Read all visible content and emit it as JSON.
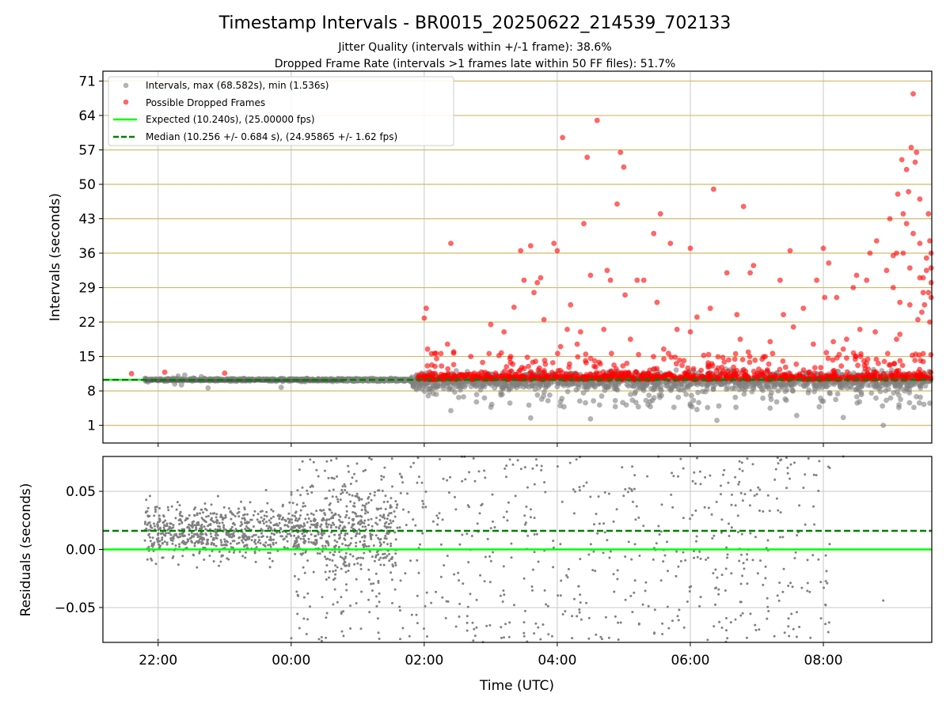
{
  "chart_data": [
    {
      "type": "scatter",
      "title": "Timestamp Intervals - BR0015_20250622_214539_702133",
      "subtitle_lines": [
        "Jitter Quality (intervals within +/-1 frame): 38.6%",
        "Dropped Frame Rate (intervals >1 frames late within 50 FF files): 51.7%"
      ],
      "ylabel": "Intervals (seconds)",
      "ylim": [
        -2.6,
        73.0
      ],
      "yticks": [
        1,
        8,
        15,
        22,
        29,
        36,
        43,
        50,
        57,
        64,
        71
      ],
      "ytick_labels": [
        "1",
        "8",
        "15",
        "22",
        "29",
        "36",
        "43",
        "50",
        "57",
        "64",
        "71"
      ],
      "xlim_hours": [
        -2.83,
        9.63
      ],
      "grid": true,
      "legend_position": "top-left",
      "legend": [
        {
          "label": "Intervals, max (68.582s), min (1.536s)",
          "kind": "marker",
          "color": "#808080"
        },
        {
          "label": "Possible Dropped Frames",
          "kind": "marker",
          "color": "#ff0000"
        },
        {
          "label": "Expected (10.240s), (25.00000 fps)",
          "kind": "line",
          "color": "#00ff00"
        },
        {
          "label": "Median (10.256 +/- 0.684 s), (24.95865 +/- 1.62 fps)",
          "kind": "dashed",
          "color": "#008000"
        }
      ],
      "expected_value": 10.24,
      "median_value": 10.256,
      "dropped_points": [
        [
          2.03,
          24.8
        ],
        [
          2.0,
          22.8
        ],
        [
          2.05,
          16.5
        ],
        [
          2.35,
          17.5
        ],
        [
          2.4,
          38.0
        ],
        [
          2.7,
          15.0
        ],
        [
          3.0,
          21.5
        ],
        [
          3.2,
          20.0
        ],
        [
          3.3,
          15.0
        ],
        [
          3.35,
          25.0
        ],
        [
          3.45,
          36.5
        ],
        [
          3.5,
          30.5
        ],
        [
          3.6,
          37.5
        ],
        [
          3.65,
          28.0
        ],
        [
          3.7,
          30.0
        ],
        [
          3.75,
          31.0
        ],
        [
          3.8,
          22.5
        ],
        [
          3.95,
          38.0
        ],
        [
          4.0,
          36.5
        ],
        [
          4.05,
          17.0
        ],
        [
          4.08,
          59.5
        ],
        [
          4.15,
          20.5
        ],
        [
          4.2,
          25.5
        ],
        [
          4.3,
          17.5
        ],
        [
          4.35,
          20.0
        ],
        [
          4.4,
          42.0
        ],
        [
          4.45,
          55.5
        ],
        [
          4.5,
          31.5
        ],
        [
          4.6,
          63.0
        ],
        [
          4.7,
          20.5
        ],
        [
          4.75,
          32.5
        ],
        [
          4.8,
          30.5
        ],
        [
          4.9,
          46.0
        ],
        [
          4.95,
          56.5
        ],
        [
          5.0,
          53.5
        ],
        [
          5.02,
          27.5
        ],
        [
          5.1,
          18.5
        ],
        [
          5.2,
          30.5
        ],
        [
          5.3,
          30.5
        ],
        [
          5.45,
          40.0
        ],
        [
          5.5,
          26.0
        ],
        [
          5.55,
          44.0
        ],
        [
          5.6,
          16.5
        ],
        [
          5.7,
          38.0
        ],
        [
          5.8,
          20.5
        ],
        [
          6.0,
          37.0
        ],
        [
          6.0,
          20.0
        ],
        [
          6.1,
          23.0
        ],
        [
          6.35,
          49.0
        ],
        [
          6.3,
          24.8
        ],
        [
          6.55,
          32.0
        ],
        [
          6.7,
          23.5
        ],
        [
          6.75,
          18.5
        ],
        [
          6.8,
          45.5
        ],
        [
          6.9,
          32.0
        ],
        [
          6.95,
          33.5
        ],
        [
          7.2,
          18.0
        ],
        [
          7.35,
          30.5
        ],
        [
          7.4,
          23.5
        ],
        [
          7.5,
          36.5
        ],
        [
          7.55,
          21.0
        ],
        [
          7.7,
          24.8
        ],
        [
          7.85,
          17.5
        ],
        [
          7.9,
          30.5
        ],
        [
          8.0,
          37.0
        ],
        [
          8.02,
          27.0
        ],
        [
          8.08,
          34.0
        ],
        [
          8.15,
          18.0
        ],
        [
          8.2,
          27.0
        ],
        [
          8.3,
          16.5
        ],
        [
          8.35,
          18.5
        ],
        [
          8.45,
          29.0
        ],
        [
          8.5,
          31.5
        ],
        [
          8.55,
          20.5
        ],
        [
          8.65,
          30.5
        ],
        [
          8.7,
          36.0
        ],
        [
          8.78,
          20.0
        ],
        [
          8.8,
          38.5
        ],
        [
          8.95,
          32.5
        ],
        [
          9.05,
          29.0
        ],
        [
          9.1,
          18.5
        ],
        [
          9.12,
          48.0
        ],
        [
          9.15,
          26.0
        ],
        [
          9.2,
          36.0
        ],
        [
          9.25,
          42.0
        ],
        [
          9.3,
          25.5
        ],
        [
          9.35,
          40.0
        ],
        [
          9.38,
          54.5
        ],
        [
          9.4,
          56.5
        ],
        [
          9.45,
          31.0
        ],
        [
          9.48,
          24.0
        ],
        [
          9.5,
          28.0
        ],
        [
          9.55,
          32.5
        ],
        [
          9.58,
          44.0
        ],
        [
          9.6,
          38.5
        ],
        [
          9.6,
          22.0
        ],
        [
          9.62,
          27.0
        ],
        [
          9.62,
          30.0
        ],
        [
          9.25,
          53.0
        ],
        [
          9.35,
          68.4
        ],
        [
          9.45,
          47.0
        ],
        [
          9.3,
          33.0
        ],
        [
          9.15,
          19.5
        ],
        [
          9.05,
          35.5
        ],
        [
          9.0,
          43.0
        ],
        [
          9.1,
          36.0
        ],
        [
          9.2,
          44.0
        ],
        [
          9.28,
          48.5
        ],
        [
          9.32,
          57.5
        ],
        [
          9.18,
          55.0
        ],
        [
          9.52,
          25.5
        ],
        [
          9.42,
          22.5
        ],
        [
          9.55,
          35.0
        ],
        [
          9.58,
          28.0
        ],
        [
          9.62,
          33.0
        ],
        [
          9.62,
          36.0
        ],
        [
          9.5,
          31.0
        ],
        [
          9.45,
          38.0
        ],
        [
          -2.4,
          11.5
        ],
        [
          -1.0,
          11.6
        ],
        [
          -1.9,
          11.8
        ]
      ],
      "residual_ylabel": "Residuals (seconds)",
      "residual_ylim": [
        -0.08,
        0.08
      ],
      "residual_yticks": [
        -0.05,
        0.0,
        0.05
      ],
      "residual_ytick_labels": [
        "−0.05",
        "0.00",
        "0.05"
      ],
      "residual_expected": 0.0,
      "residual_median": 0.016,
      "xlabel": "Time (UTC)",
      "xticks_hours": [
        -2,
        0,
        2,
        4,
        6,
        8
      ],
      "xtick_labels": [
        "22:00",
        "00:00",
        "02:00",
        "04:00",
        "06:00",
        "08:00"
      ]
    }
  ],
  "colors": {
    "interval_gray": "#808080",
    "dropped_red": "#ff0000",
    "expected_green": "#00ff00",
    "median_green": "#008000",
    "hline_gold": "#d4b96a",
    "grid": "#c8c8c8"
  }
}
